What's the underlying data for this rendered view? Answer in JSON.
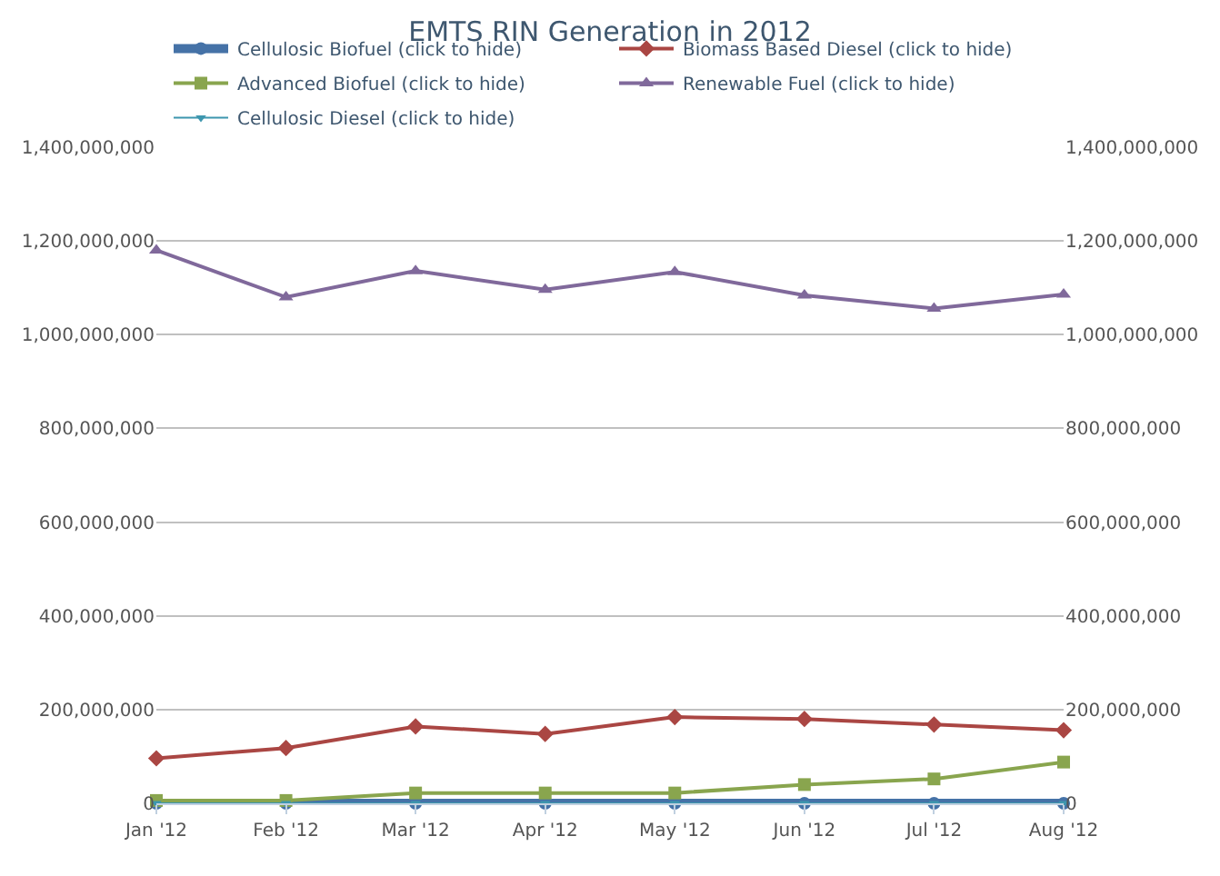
{
  "chart_data": {
    "type": "line",
    "title": "EMTS RIN Generation in 2012",
    "categories": [
      "Jan '12",
      "Feb '12",
      "Mar '12",
      "Apr '12",
      "May '12",
      "Jun '12",
      "Jul '12",
      "Aug '12"
    ],
    "series": [
      {
        "name": "Cellulosic Biofuel (click to hide)",
        "color": "#4572a7",
        "marker": "circle",
        "values": [
          0,
          0,
          0,
          0,
          0,
          0,
          0,
          0
        ]
      },
      {
        "name": "Biomass Based Diesel (click to hide)",
        "color": "#aa4643",
        "marker": "diamond",
        "values": [
          96000000,
          118000000,
          164000000,
          148000000,
          184000000,
          180000000,
          168000000,
          156000000
        ]
      },
      {
        "name": "Advanced Biofuel (click to hide)",
        "color": "#89a54e",
        "marker": "square",
        "values": [
          6000000,
          6000000,
          22000000,
          22000000,
          22000000,
          40000000,
          52000000,
          88000000
        ]
      },
      {
        "name": "Renewable Fuel (click to hide)",
        "color": "#80699b",
        "marker": "triangle",
        "values": [
          1180000000,
          1080000000,
          1136000000,
          1096000000,
          1134000000,
          1084000000,
          1056000000,
          1086000000
        ]
      },
      {
        "name": "Cellulosic Diesel (click to hide)",
        "color": "#3d96ae",
        "marker": "triangle-down",
        "values": [
          0,
          0,
          0,
          0,
          0,
          0,
          0,
          0
        ]
      }
    ],
    "ylim": [
      0,
      1400000000
    ],
    "yticks": [
      {
        "value": 0,
        "label": "0"
      },
      {
        "value": 200000000,
        "label": "200,000,000"
      },
      {
        "value": 400000000,
        "label": "400,000,000"
      },
      {
        "value": 600000000,
        "label": "600,000,000"
      },
      {
        "value": 800000000,
        "label": "800,000,000"
      },
      {
        "value": 1000000000,
        "label": "1,000,000,000"
      },
      {
        "value": 1200000000,
        "label": "1,200,000,000"
      },
      {
        "value": 1400000000,
        "label": "1,400,000,000"
      }
    ],
    "y2lim": [
      0,
      1400000000
    ],
    "y2ticks": [
      {
        "value": 0,
        "label": "0"
      },
      {
        "value": 200000000,
        "label": "200,000,000"
      },
      {
        "value": 400000000,
        "label": "400,000,000"
      },
      {
        "value": 600000000,
        "label": "600,000,000"
      },
      {
        "value": 800000000,
        "label": "800,000,000"
      },
      {
        "value": 1000000000,
        "label": "1,000,000,000"
      },
      {
        "value": 1200000000,
        "label": "1,200,000,000"
      },
      {
        "value": 1400000000,
        "label": "1,400,000,000"
      }
    ],
    "grid": "y",
    "legend": "top",
    "line_style": "solid"
  }
}
